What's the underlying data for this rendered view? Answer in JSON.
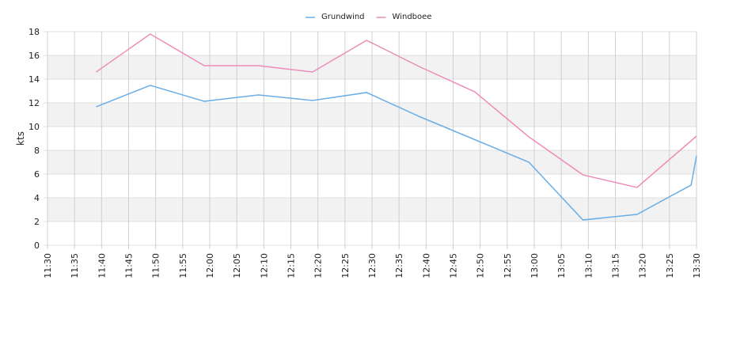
{
  "chart_data": {
    "type": "line",
    "y_label": "kts",
    "x": [
      "11:39",
      "11:49",
      "11:59",
      "12:09",
      "12:19",
      "12:29",
      "12:39",
      "12:49",
      "12:59",
      "13:09",
      "13:19",
      "13:29",
      "13:30"
    ],
    "series": [
      {
        "name": "Grundwind",
        "color": "#6aaee8",
        "values": [
          11.67,
          13.47,
          12.13,
          12.67,
          12.2,
          12.87,
          10.8,
          8.9,
          7.0,
          2.13,
          2.6,
          5.07,
          7.53
        ]
      },
      {
        "name": "Windboee",
        "color": "#ee8cb8",
        "values": [
          14.6,
          17.8,
          15.13,
          15.13,
          14.6,
          17.27,
          15.0,
          12.93,
          9.13,
          5.93,
          4.87,
          8.8,
          9.2
        ]
      }
    ],
    "xlim": [
      "11:30",
      "13:30"
    ],
    "xticks": [
      "11:30",
      "11:35",
      "11:40",
      "11:45",
      "11:50",
      "11:55",
      "12:00",
      "12:05",
      "12:10",
      "12:15",
      "12:20",
      "12:25",
      "12:30",
      "12:35",
      "12:40",
      "12:45",
      "12:50",
      "12:55",
      "13:00",
      "13:05",
      "13:10",
      "13:15",
      "13:20",
      "13:25",
      "13:30"
    ],
    "ylim": [
      0,
      18
    ],
    "yticks": [
      0,
      2,
      4,
      6,
      8,
      10,
      12,
      14,
      16,
      18
    ],
    "grid": true,
    "legend": "top"
  }
}
